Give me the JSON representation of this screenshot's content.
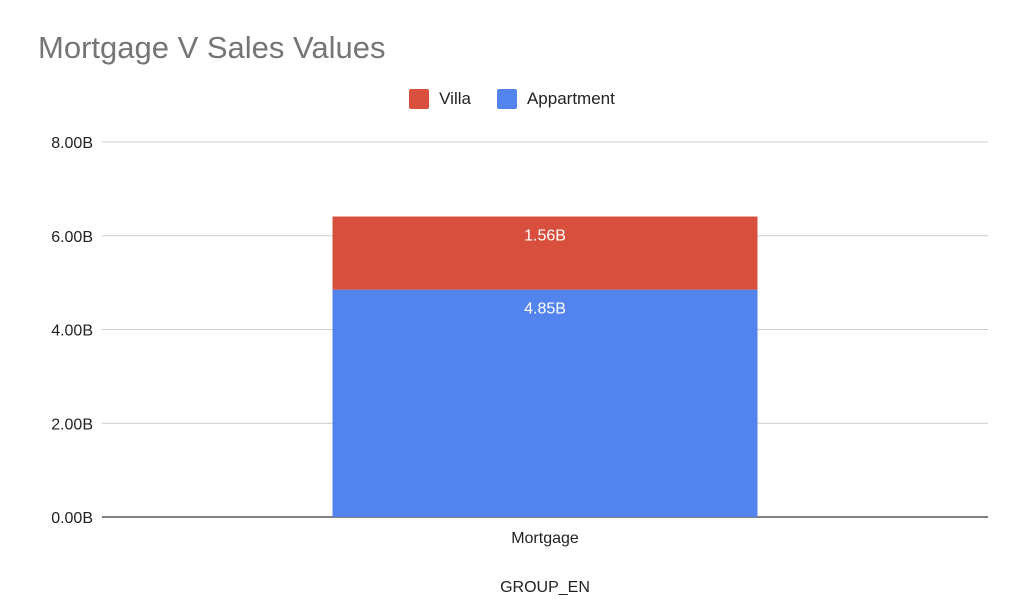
{
  "chart_data": {
    "type": "bar",
    "stacked": true,
    "title": "Mortgage V Sales Values",
    "xlabel": "GROUP_EN",
    "ylabel": "",
    "categories": [
      "Mortgage"
    ],
    "series": [
      {
        "name": "Appartment",
        "values": [
          4.85
        ],
        "label": "4.85B",
        "color": "#5383EC"
      },
      {
        "name": "Villa",
        "values": [
          1.56
        ],
        "label": "1.56B",
        "color": "#D94F3D"
      }
    ],
    "ylim": [
      0,
      8
    ],
    "yticks": [
      0,
      2,
      4,
      6,
      8
    ],
    "ytick_labels": [
      "0.00B",
      "2.00B",
      "4.00B",
      "6.00B",
      "8.00B"
    ],
    "legend_order": [
      "Villa",
      "Appartment"
    ],
    "legend_position": "top",
    "grid": true
  }
}
